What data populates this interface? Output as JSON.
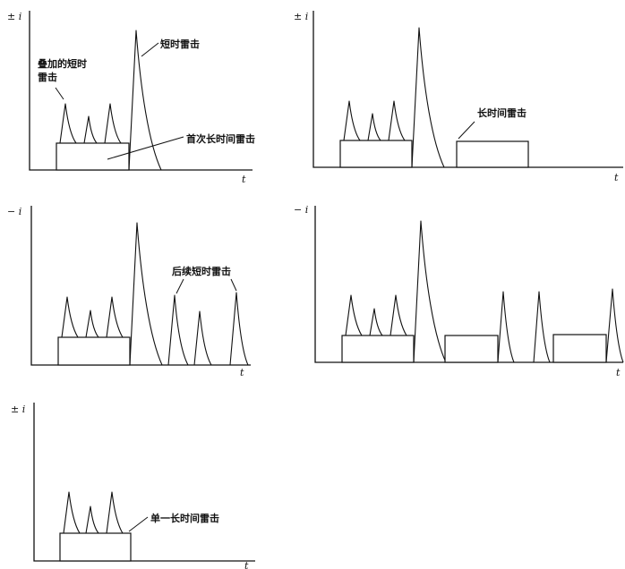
{
  "panels": [
    {
      "y_axis_label": "± i",
      "x_axis_label": "t",
      "annotations": [
        "叠加的短时",
        "雷击",
        "短时雷击",
        "首次长时间雷击"
      ]
    },
    {
      "y_axis_label": "± i",
      "x_axis_label": "t",
      "annotations": [
        "长时间雷击"
      ]
    },
    {
      "y_axis_label": "− i",
      "x_axis_label": "t",
      "annotations": [
        "后续短时雷击"
      ]
    },
    {
      "y_axis_label": "− i",
      "x_axis_label": "t",
      "annotations": []
    },
    {
      "y_axis_label": "± i",
      "x_axis_label": "t",
      "annotations": [
        "单一长时间雷击"
      ]
    }
  ]
}
